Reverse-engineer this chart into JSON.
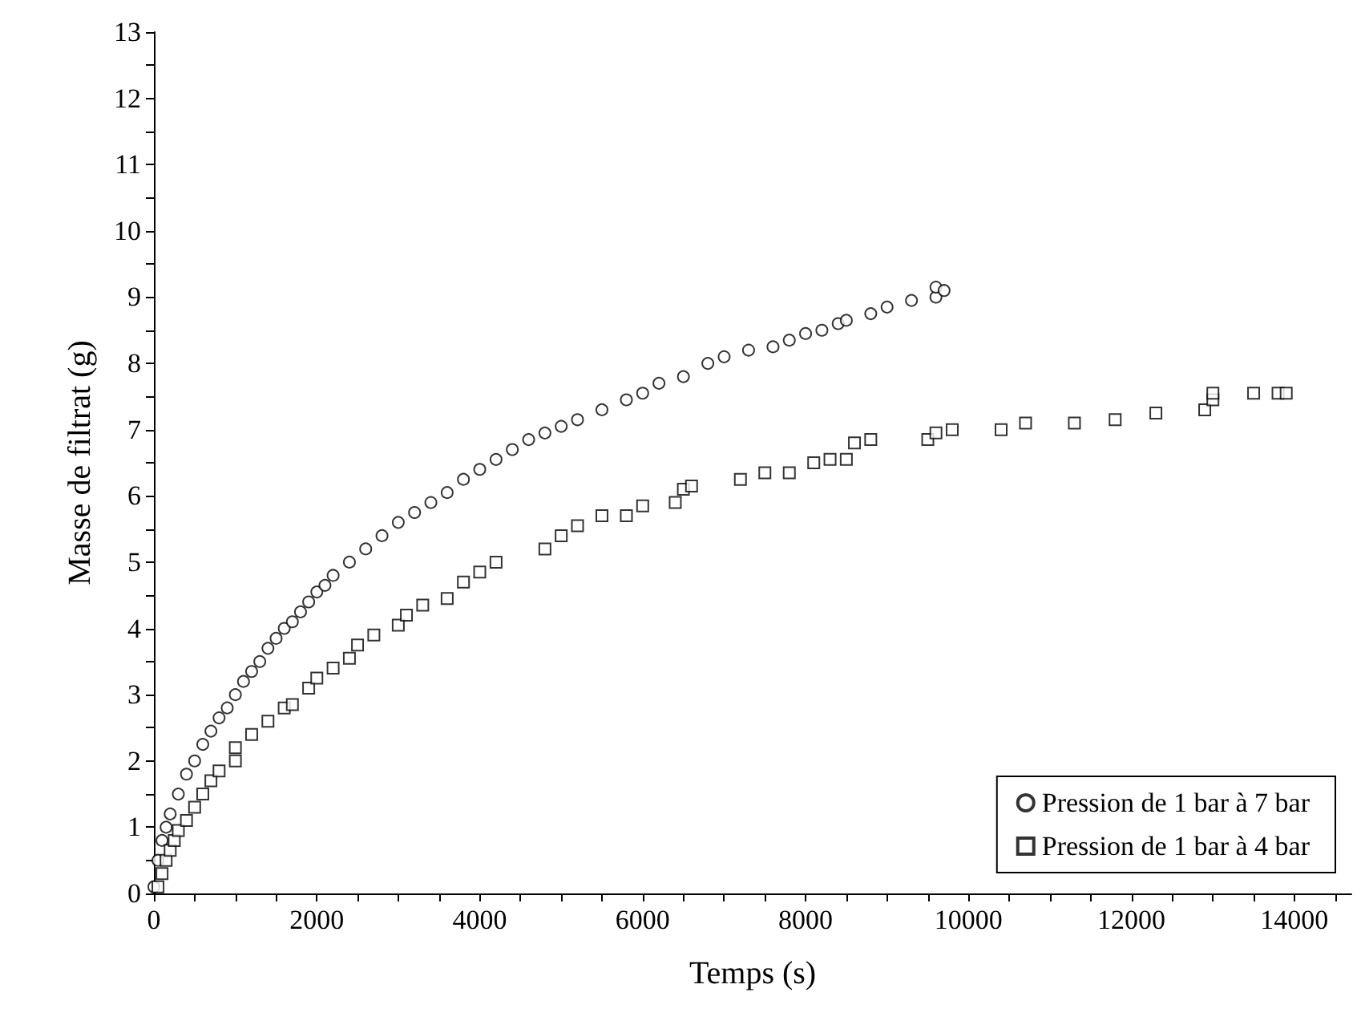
{
  "chart_data": {
    "type": "scatter",
    "xlabel": "Temps (s)",
    "ylabel": "Masse de filtrat (g)",
    "marker": "circle",
    "grid": false,
    "legend": "bottom right",
    "xlim": [
      0,
      14700
    ],
    "ylim": [
      0,
      13
    ],
    "xticks": [
      0,
      {
        "value": 500,
        "label": null
      },
      {
        "value": 1000,
        "label": null
      },
      {
        "value": 1500,
        "label": null
      },
      2000,
      {
        "value": 2500,
        "label": null
      },
      {
        "value": 3000,
        "label": null
      },
      {
        "value": 3500,
        "label": null
      },
      4000,
      {
        "value": 4500,
        "label": null
      },
      {
        "value": 5000,
        "label": null
      },
      {
        "value": 5500,
        "label": null
      },
      6000,
      {
        "value": 6500,
        "label": null
      },
      {
        "value": 7000,
        "label": null
      },
      {
        "value": 7500,
        "label": null
      },
      8000,
      {
        "value": 8500,
        "label": null
      },
      {
        "value": 9000,
        "label": null
      },
      {
        "value": 9500,
        "label": null
      },
      10000,
      {
        "value": 10500,
        "label": null
      },
      {
        "value": 11000,
        "label": null
      },
      {
        "value": 11500,
        "label": null
      },
      12000,
      {
        "value": 12500,
        "label": null
      },
      {
        "value": 13000,
        "label": null
      },
      {
        "value": 13500,
        "label": null
      },
      14000,
      {
        "value": 14500,
        "label": null
      }
    ],
    "yticks": [
      0,
      {
        "value": 0.5,
        "label": null
      },
      1,
      {
        "value": 1.5,
        "label": null
      },
      2,
      {
        "value": 2.5,
        "label": null
      },
      3,
      {
        "value": 3.5,
        "label": null
      },
      4,
      {
        "value": 4.5,
        "label": null
      },
      5,
      {
        "value": 5.5,
        "label": null
      },
      6,
      {
        "value": 6.5,
        "label": null
      },
      7,
      {
        "value": 7.5,
        "label": null
      },
      8,
      {
        "value": 8.5,
        "label": null
      },
      9,
      {
        "value": 9.5,
        "label": null
      },
      10,
      {
        "value": 10.5,
        "label": null
      },
      11,
      {
        "value": 11.5,
        "label": null
      },
      12,
      {
        "value": 12.5,
        "label": null
      },
      13
    ],
    "series": [
      {
        "name": "Pression de 1 bar à 7 bar",
        "color": "#000000",
        "x": [
          0,
          50,
          100,
          150,
          200,
          300,
          400,
          500,
          600,
          700,
          800,
          900,
          1000,
          1100,
          1200,
          1300,
          1400,
          1500,
          1600,
          1700,
          1800,
          1900,
          2000,
          2100,
          2200,
          2400,
          2600,
          2800,
          3000,
          3200,
          3400,
          3600,
          3800,
          4000,
          4200,
          4400,
          4600,
          4800,
          5000,
          5200,
          5500,
          5800,
          6000,
          6200,
          6500,
          6800,
          7000,
          7300,
          7600,
          7800,
          8000,
          8200,
          8400,
          8500,
          8800,
          9000,
          9300,
          9600,
          9600,
          9700
        ],
        "values": [
          0.1,
          0.5,
          0.8,
          1.0,
          1.2,
          1.5,
          1.8,
          2.0,
          2.25,
          2.45,
          2.65,
          2.8,
          3.0,
          3.2,
          3.35,
          3.5,
          3.7,
          3.85,
          4.0,
          4.1,
          4.25,
          4.4,
          4.55,
          4.65,
          4.8,
          5.0,
          5.2,
          5.4,
          5.6,
          5.75,
          5.9,
          6.05,
          6.25,
          6.4,
          6.55,
          6.7,
          6.85,
          6.95,
          7.05,
          7.15,
          7.3,
          7.45,
          7.55,
          7.7,
          7.8,
          8.0,
          8.1,
          8.2,
          8.25,
          8.35,
          8.45,
          8.5,
          8.6,
          8.65,
          8.75,
          8.85,
          8.95,
          9.0,
          9.15,
          9.1
        ]
      },
      {
        "name": "Pression de 1 bar à 4 bar",
        "color": "#000000",
        "marker": "square",
        "x": [
          50,
          100,
          150,
          200,
          250,
          300,
          400,
          500,
          600,
          700,
          800,
          1000,
          1000,
          1200,
          1400,
          1600,
          1700,
          1900,
          2000,
          2200,
          2400,
          2500,
          2700,
          3000,
          3100,
          3300,
          3600,
          3800,
          4000,
          4200,
          4800,
          5000,
          5200,
          5500,
          5800,
          6000,
          6400,
          6500,
          6600,
          7200,
          7500,
          7800,
          8100,
          8300,
          8500,
          8600,
          8800,
          9500,
          9600,
          9800,
          10400,
          10700,
          11300,
          11800,
          12300,
          12900,
          13000,
          13000,
          13500,
          13800,
          13900
        ],
        "values": [
          0.1,
          0.3,
          0.5,
          0.65,
          0.8,
          0.95,
          1.1,
          1.3,
          1.5,
          1.7,
          1.85,
          2.0,
          2.2,
          2.4,
          2.6,
          2.8,
          2.85,
          3.1,
          3.25,
          3.4,
          3.55,
          3.75,
          3.9,
          4.05,
          4.2,
          4.35,
          4.45,
          4.7,
          4.85,
          5.0,
          5.2,
          5.4,
          5.55,
          5.7,
          5.7,
          5.85,
          5.9,
          6.1,
          6.15,
          6.25,
          6.35,
          6.35,
          6.5,
          6.55,
          6.55,
          6.8,
          6.85,
          6.85,
          6.95,
          7.0,
          7.0,
          7.1,
          7.1,
          7.15,
          7.25,
          7.3,
          7.45,
          7.55,
          7.55,
          7.55,
          7.55
        ]
      }
    ]
  }
}
